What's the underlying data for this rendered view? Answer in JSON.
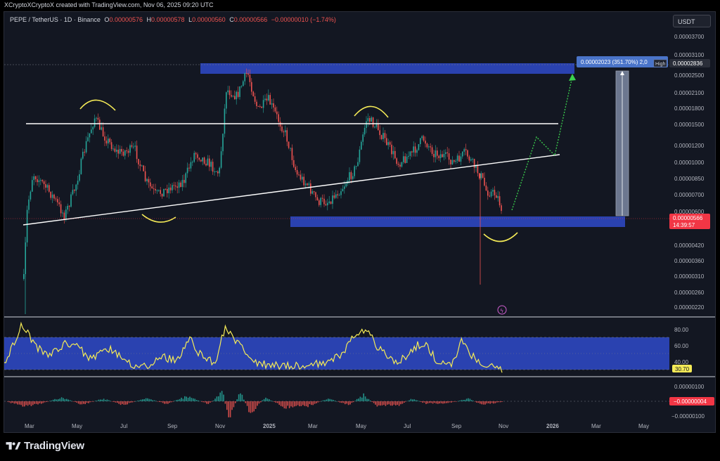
{
  "header": {
    "credit": "XCryptoXCryptoX created with TradingView.com, Nov 06, 2025 09:20 UTC"
  },
  "legend": {
    "symbol": "PEPE / TetherUS · 1D · Binance",
    "open_label": "O",
    "open": "0.00000576",
    "high_label": "H",
    "high": "0.00000578",
    "low_label": "L",
    "low": "0.00000560",
    "close_label": "C",
    "close": "0.00000566",
    "change": "−0.00000010 (−1.74%)"
  },
  "currency_button": "USDT",
  "price_axis": {
    "ticks": [
      "0.00003700",
      "0.00003100",
      "0.00002500",
      "0.00002100",
      "0.00001800",
      "0.00001500",
      "0.00001200",
      "0.00001000",
      "0.00000850",
      "0.00000700",
      "0.00000600",
      "0.00000500",
      "0.00000420",
      "0.00000360",
      "0.00000310",
      "0.00000260",
      "0.00000220"
    ],
    "high_label": "High",
    "high_value": "0.00002836",
    "last_price": "0.00000566",
    "countdown": "14:39:57"
  },
  "measure_label": "0.00002023 (351.70%) 2,0",
  "rsi": {
    "ticks": [
      "80.00",
      "60.00",
      "40.00"
    ],
    "value": "30.70"
  },
  "macd": {
    "ticks": [
      "0.00000100",
      "−0.00000100"
    ],
    "value": "−0.00000004"
  },
  "time_axis": [
    "Mar",
    "May",
    "Jul",
    "Sep",
    "Nov",
    "2025",
    "Mar",
    "May",
    "Jul",
    "Sep",
    "Nov",
    "2026",
    "Mar",
    "May"
  ],
  "footer": {
    "brand": "TradingView"
  },
  "colors": {
    "up": "#26a69a",
    "down": "#ef5350",
    "zone": "#2b44b8",
    "rsi": "#f5eb57",
    "accent": "#2962ff",
    "green_path": "#3bd14e"
  },
  "chart_data": {
    "type": "candlestick",
    "series": [
      {
        "name": "PEPE / TetherUS",
        "interval": "1D",
        "exchange": "Binance"
      }
    ],
    "price_range": [
      2.2e-06,
      3.7e-05
    ],
    "last_close": 5.66e-06,
    "prior_high": 2.836e-05,
    "rsi_last": 30.7,
    "macd_last": -4e-08,
    "time_range": [
      "2024-03",
      "2026-05"
    ]
  }
}
